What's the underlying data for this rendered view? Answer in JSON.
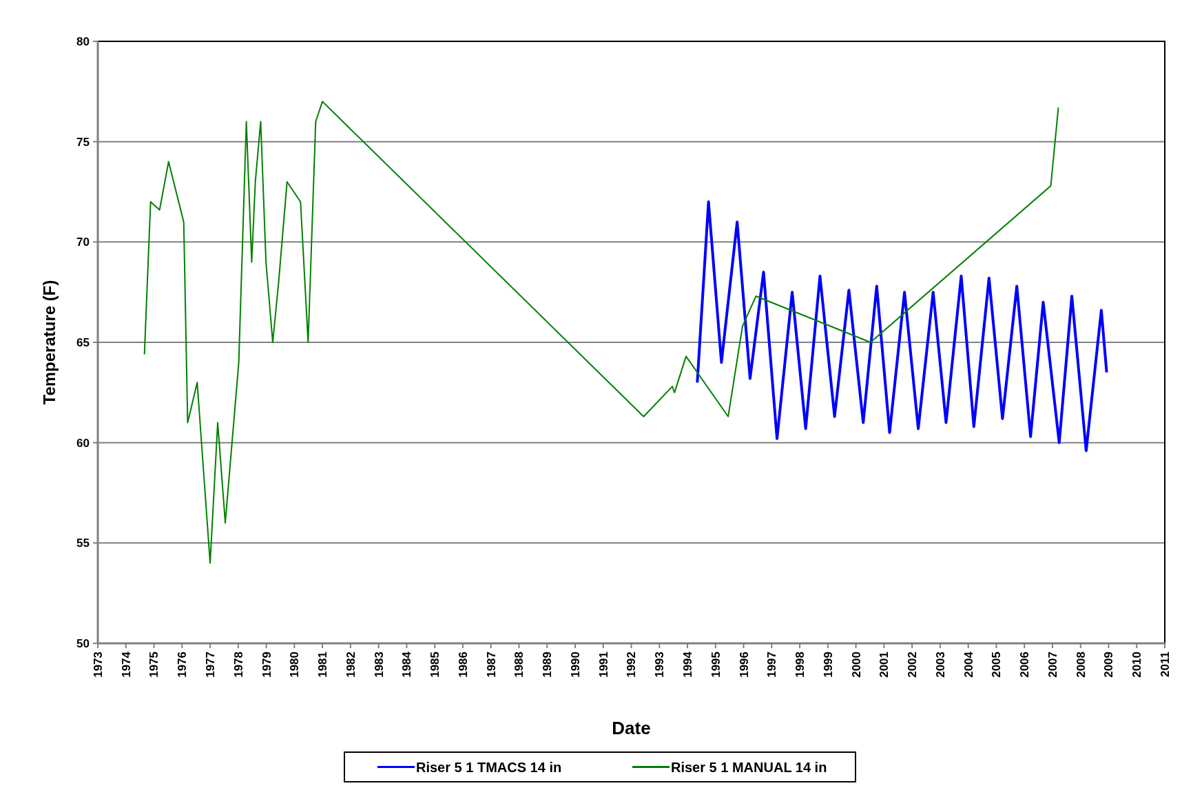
{
  "chart_data": {
    "type": "line",
    "xlabel": "Date",
    "ylabel": "Temperature (F)",
    "xlim": [
      1973,
      2011
    ],
    "xticks": [
      1973,
      1974,
      1975,
      1976,
      1977,
      1978,
      1979,
      1980,
      1981,
      1982,
      1983,
      1984,
      1985,
      1986,
      1987,
      1988,
      1989,
      1990,
      1991,
      1992,
      1993,
      1994,
      1995,
      1996,
      1997,
      1998,
      1999,
      2000,
      2001,
      2002,
      2003,
      2004,
      2005,
      2006,
      2007,
      2008,
      2009,
      2010,
      2011
    ],
    "ylim": [
      50,
      80
    ],
    "yticks": [
      50,
      55,
      60,
      65,
      70,
      75,
      80
    ],
    "grid": "y",
    "legend": "bottom",
    "marker": "none",
    "line_style": "solid",
    "series": [
      {
        "name": "Riser 5 1 TMACS 14 in",
        "color": "#0000ff",
        "x": [
          1994.35,
          1994.75,
          1995.21,
          1995.77,
          1996.23,
          1996.71,
          1997.19,
          1997.73,
          1998.21,
          1998.72,
          1999.24,
          1999.75,
          2000.26,
          2000.74,
          2001.2,
          2001.73,
          2002.22,
          2002.75,
          2003.21,
          2003.75,
          2004.2,
          2004.74,
          2005.22,
          2005.73,
          2006.22,
          2006.67,
          2007.24,
          2007.69,
          2008.2,
          2008.74,
          2008.93
        ],
        "values": [
          63,
          72,
          64,
          71,
          63.2,
          68.5,
          60.2,
          67.5,
          60.7,
          68.3,
          61.3,
          67.6,
          61,
          67.8,
          60.5,
          67.5,
          60.7,
          67.5,
          61,
          68.3,
          60.8,
          68.2,
          61.2,
          67.8,
          60.3,
          67,
          60,
          67.3,
          59.6,
          66.6,
          63.5
        ]
      },
      {
        "name": "Riser 5 1 MANUAL 14 in",
        "color": "#008000",
        "x": [
          1974.66,
          1974.88,
          1975.2,
          1975.52,
          1976.06,
          1976.2,
          1976.54,
          1977.0,
          1977.27,
          1977.54,
          1978.02,
          1978.29,
          1978.48,
          1978.61,
          1978.8,
          1978.99,
          1979.23,
          1979.44,
          1979.74,
          1980.22,
          1980.49,
          1980.76,
          1981.0,
          1992.44,
          1993.46,
          1993.54,
          1993.95,
          1995.45,
          1995.96,
          1996.44,
          2000.52,
          2006.94,
          2007.21
        ],
        "values": [
          64.4,
          72,
          71.6,
          74,
          71,
          61,
          63,
          54,
          61,
          56,
          64,
          76,
          69,
          73,
          76,
          69,
          65,
          68,
          73,
          72,
          65,
          76,
          77,
          61.3,
          62.8,
          62.5,
          64.3,
          61.3,
          65.8,
          67.3,
          65,
          72.8,
          76.7
        ]
      }
    ]
  }
}
